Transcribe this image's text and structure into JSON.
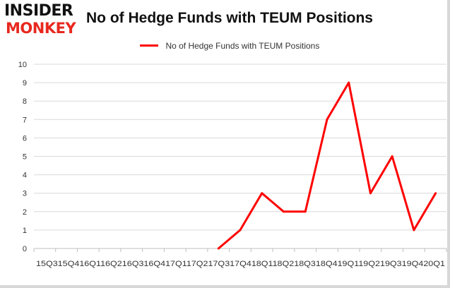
{
  "logo": {
    "line1": "INSIDER",
    "line2": "MONKEY"
  },
  "chart_data": {
    "type": "line",
    "title": "No of Hedge Funds with TEUM Positions",
    "x_tick_text": "15Q315Q416Q116Q216Q316Q417Q117Q217Q317Q418Q118Q218Q318Q419Q119Q219Q319Q420Q1",
    "categories": [
      "15Q3",
      "15Q4",
      "16Q1",
      "16Q2",
      "16Q3",
      "16Q4",
      "17Q1",
      "17Q2",
      "17Q3",
      "17Q4",
      "18Q1",
      "18Q2",
      "18Q3",
      "18Q4",
      "19Q1",
      "19Q2",
      "19Q3",
      "19Q4",
      "20Q1"
    ],
    "series": [
      {
        "name": "No of Hedge Funds with TEUM  Positions",
        "values": [
          null,
          null,
          null,
          null,
          null,
          null,
          null,
          null,
          0,
          1,
          3,
          2,
          2,
          7,
          9,
          3,
          5,
          1,
          3
        ]
      }
    ],
    "ylim": [
      0,
      10
    ],
    "yticks": [
      0,
      1,
      2,
      3,
      4,
      5,
      6,
      7,
      8,
      9,
      10
    ],
    "grid": true,
    "legend_position": "top",
    "colors": {
      "line": "#ff0000",
      "grid": "#d9d9d9",
      "axis": "#bfbfbf"
    }
  }
}
